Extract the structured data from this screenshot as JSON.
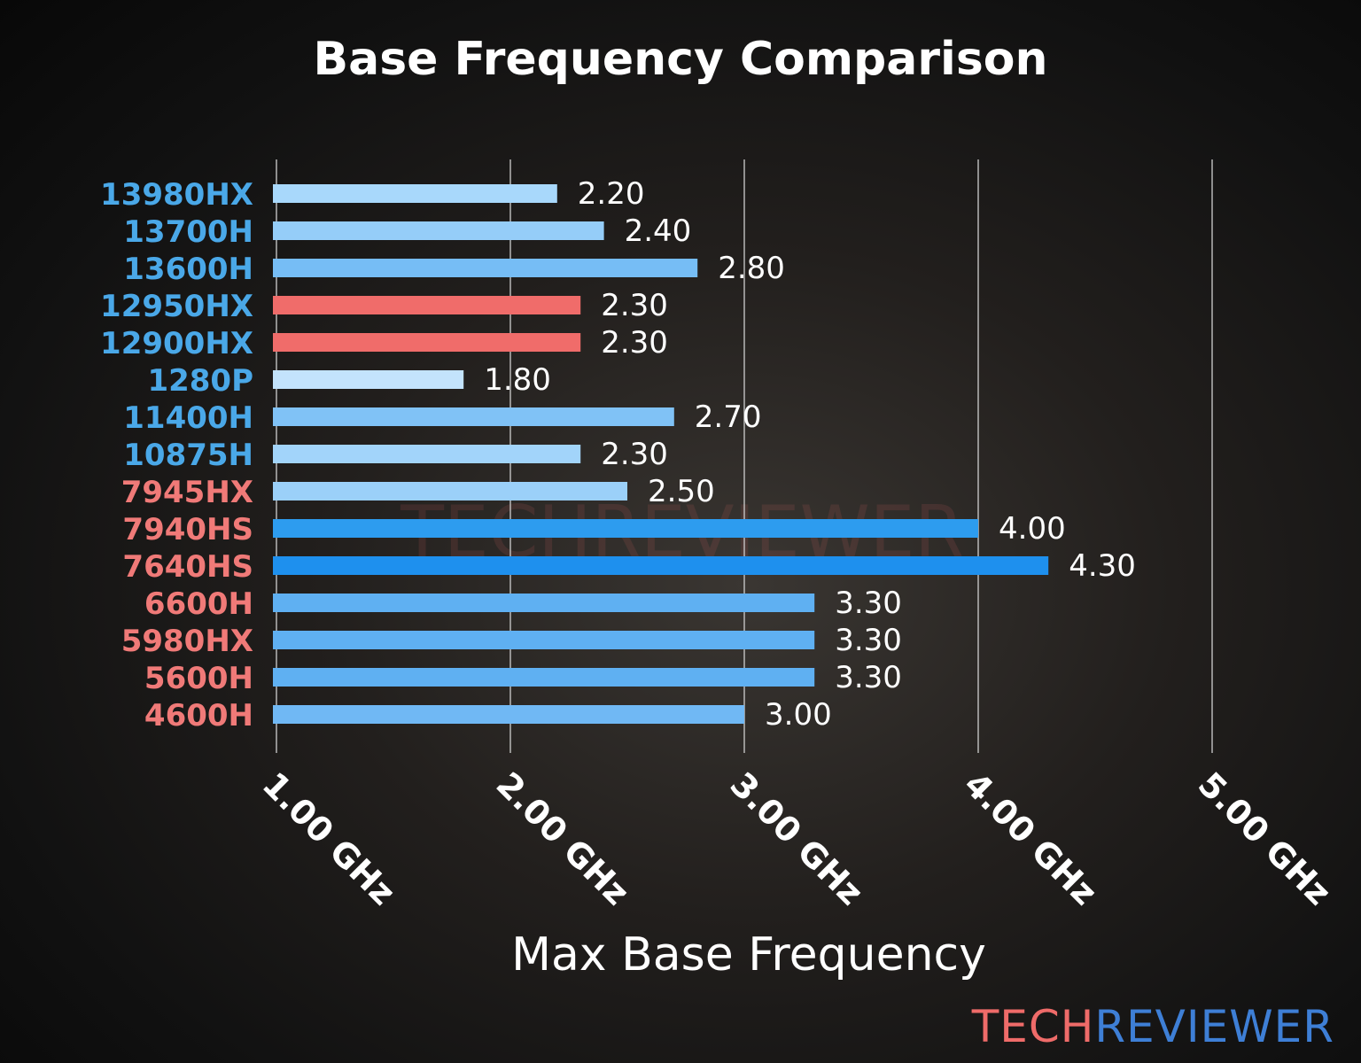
{
  "chart_data": {
    "type": "bar",
    "orientation": "horizontal",
    "title": "Base Frequency Comparison",
    "xlabel": "Max Base Frequency",
    "ylabel": "",
    "xlim": [
      1.0,
      5.0
    ],
    "xticks": [
      "1.00 GHz",
      "2.00 GHz",
      "3.00 GHz",
      "4.00 GHz",
      "5.00 GHz"
    ],
    "xtick_values": [
      1,
      2,
      3,
      4,
      5
    ],
    "grid": "vertical lines",
    "categories": [
      "13980HX",
      "13700H",
      "13600H",
      "12950HX",
      "12900HX",
      "1280P",
      "11400H",
      "10875H",
      "7945HX",
      "7940HS",
      "7640HS",
      "6600H",
      "5980HX",
      "5600H",
      "4600H"
    ],
    "values": [
      2.2,
      2.4,
      2.8,
      2.3,
      2.3,
      1.8,
      2.7,
      2.3,
      2.5,
      4.0,
      4.3,
      3.3,
      3.3,
      3.3,
      3.0
    ],
    "data_labels": [
      "2.20",
      "2.40",
      "2.80",
      "2.30",
      "2.30",
      "1.80",
      "2.70",
      "2.30",
      "2.50",
      "4.00",
      "4.30",
      "3.30",
      "3.30",
      "3.30",
      "3.00"
    ],
    "bar_colors": [
      "#a8d8fb",
      "#95cdf8",
      "#76bdf5",
      "#f06c6a",
      "#f06c6a",
      "#c3e3fc",
      "#80c2f6",
      "#a2d4fa",
      "#9bd0f9",
      "#2d9cef",
      "#1e90ee",
      "#5fb0f2",
      "#5fb0f2",
      "#5fb0f2",
      "#70b8f4"
    ],
    "label_colors": [
      "#4aa8e8",
      "#4aa8e8",
      "#4aa8e8",
      "#4aa8e8",
      "#4aa8e8",
      "#4aa8e8",
      "#4aa8e8",
      "#4aa8e8",
      "#f07a78",
      "#f07a78",
      "#f07a78",
      "#f07a78",
      "#f07a78",
      "#f07a78",
      "#f07a78"
    ]
  },
  "watermark": "TECHREVIEWER",
  "logo": {
    "part1": "TECH",
    "part2": "REVIEWER"
  }
}
